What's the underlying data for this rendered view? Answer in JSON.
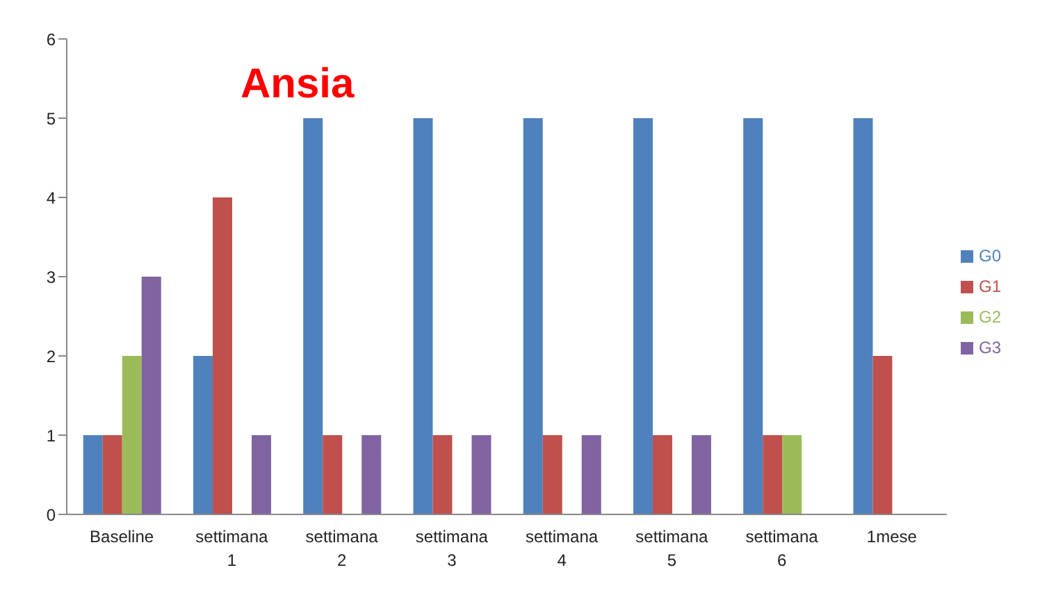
{
  "chart_data": {
    "type": "bar",
    "title": "Ansia",
    "categories": [
      "Baseline",
      "settimana 1",
      "settimana 2",
      "settimana 3",
      "settimana 4",
      "settimana 5",
      "settimana 6",
      "1mese"
    ],
    "series": [
      {
        "name": "G0",
        "color": "#4f81bd",
        "values": [
          1,
          2,
          5,
          5,
          5,
          5,
          5,
          5
        ]
      },
      {
        "name": "G1",
        "color": "#c0504d",
        "values": [
          1,
          4,
          1,
          1,
          1,
          1,
          1,
          2
        ]
      },
      {
        "name": "G2",
        "color": "#9bbb59",
        "values": [
          2,
          0,
          0,
          0,
          0,
          0,
          1,
          0
        ]
      },
      {
        "name": "G3",
        "color": "#8064a2",
        "values": [
          3,
          1,
          1,
          1,
          1,
          1,
          0,
          0
        ]
      }
    ],
    "ylim": [
      0,
      6
    ],
    "yticks": [
      0,
      1,
      2,
      3,
      4,
      5,
      6
    ],
    "grid": false,
    "legend": "right"
  }
}
